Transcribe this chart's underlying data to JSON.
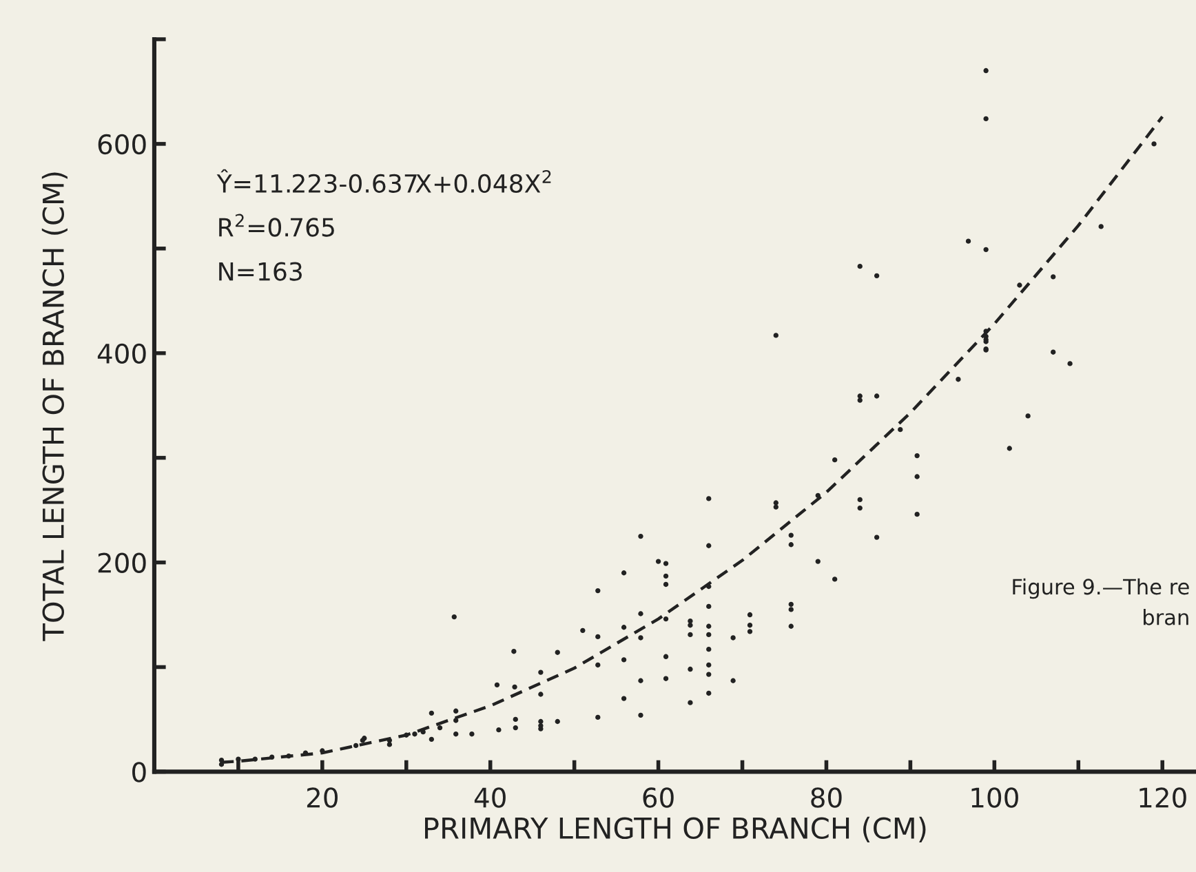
{
  "chart_data": {
    "type": "scatter",
    "xlabel": "PRIMARY LENGTH OF BRANCH (CM)",
    "ylabel": "TOTAL LENGTH OF BRANCH (CM)",
    "xlim": [
      0,
      124
    ],
    "ylim": [
      0,
      700
    ],
    "xticks": [
      {
        "value": 10,
        "label": null
      },
      20,
      {
        "value": 30,
        "label": null
      },
      40,
      {
        "value": 50,
        "label": null
      },
      60,
      {
        "value": 70,
        "label": null
      },
      80,
      {
        "value": 90,
        "label": null
      },
      100,
      {
        "value": 110,
        "label": null
      },
      120
    ],
    "yticks": [
      0,
      {
        "value": 100,
        "label": null
      },
      200,
      {
        "value": 300,
        "label": null
      },
      400,
      {
        "value": 500,
        "label": null
      },
      600,
      {
        "value": 700,
        "label": null
      }
    ],
    "grid": false,
    "tick_labels": "xy",
    "series": [
      {
        "color": "#222222",
        "marker": "circle",
        "x": [
          8,
          8,
          10,
          12,
          14,
          16,
          18,
          20,
          24,
          25,
          28,
          30,
          32,
          34,
          24.8,
          28,
          31,
          33,
          33,
          35.7,
          35.9,
          35.9,
          35.9,
          37.8,
          40.8,
          41,
          42.8,
          42.9,
          43,
          43,
          46,
          46,
          46,
          46,
          46,
          48,
          48,
          51,
          52.8,
          52.8,
          52.8,
          52.8,
          55.9,
          55.9,
          55.9,
          55.9,
          57.9,
          57.9,
          57.9,
          57.9,
          57.9,
          60,
          60.9,
          60.9,
          60.9,
          60.9,
          60.9,
          60.9,
          63.8,
          63.8,
          63.8,
          63.8,
          63.8,
          66,
          66,
          66,
          66,
          66,
          66,
          66,
          66,
          66,
          66,
          68.9,
          68.9,
          70.9,
          70.9,
          70.9,
          74,
          74,
          74,
          75.8,
          75.8,
          75.8,
          75.8,
          75.8,
          79,
          79,
          81,
          81,
          84,
          84,
          84,
          84,
          84,
          86,
          86,
          86,
          88.8,
          90.8,
          90.8,
          90.8,
          95.7,
          96.9,
          99,
          99,
          99,
          99,
          99,
          99,
          99,
          99,
          99,
          101.8,
          103,
          104,
          107,
          107,
          109,
          112.7,
          119
        ],
        "values": [
          11,
          7,
          12,
          12,
          14,
          15,
          18,
          20,
          25,
          32,
          30,
          35,
          38,
          42,
          30,
          26,
          36,
          56,
          31,
          148,
          58,
          49,
          36,
          36,
          83,
          40,
          115,
          81,
          50,
          42,
          95,
          74,
          48,
          41,
          44,
          114,
          48,
          135,
          173,
          129,
          102,
          52,
          190,
          138,
          107,
          70,
          225,
          151,
          128,
          87,
          54,
          201,
          199,
          187,
          179,
          146,
          110,
          89,
          140,
          144,
          131,
          98,
          66,
          261,
          216,
          177,
          158,
          139,
          131,
          117,
          102,
          93,
          75,
          128,
          87,
          150,
          140,
          134,
          257,
          253,
          417,
          226,
          217,
          160,
          155,
          139,
          201,
          264,
          298,
          184,
          260,
          252,
          359,
          355,
          483,
          474,
          359,
          224,
          327,
          302,
          282,
          246,
          375,
          507,
          670,
          624,
          499,
          416,
          421,
          413,
          411,
          403,
          404,
          309,
          465,
          340,
          473,
          401,
          390,
          521,
          600
        ]
      },
      {
        "type": "line",
        "color": "#222222",
        "line_style": "dashed",
        "marker": "none",
        "x": [
          8,
          10,
          20,
          30,
          40,
          50,
          60,
          70,
          80,
          90,
          100,
          110,
          120
        ],
        "values": [
          9,
          10,
          18,
          35,
          63,
          99,
          146,
          202,
          267,
          343,
          428,
          522,
          626
        ]
      }
    ],
    "annotations": [
      "Ŷ=11.223-0.637X+0.048X$^{2}$",
      "R$^{2}$=0.765",
      "N=163",
      "Figure 9.—The re",
      "bran"
    ]
  }
}
